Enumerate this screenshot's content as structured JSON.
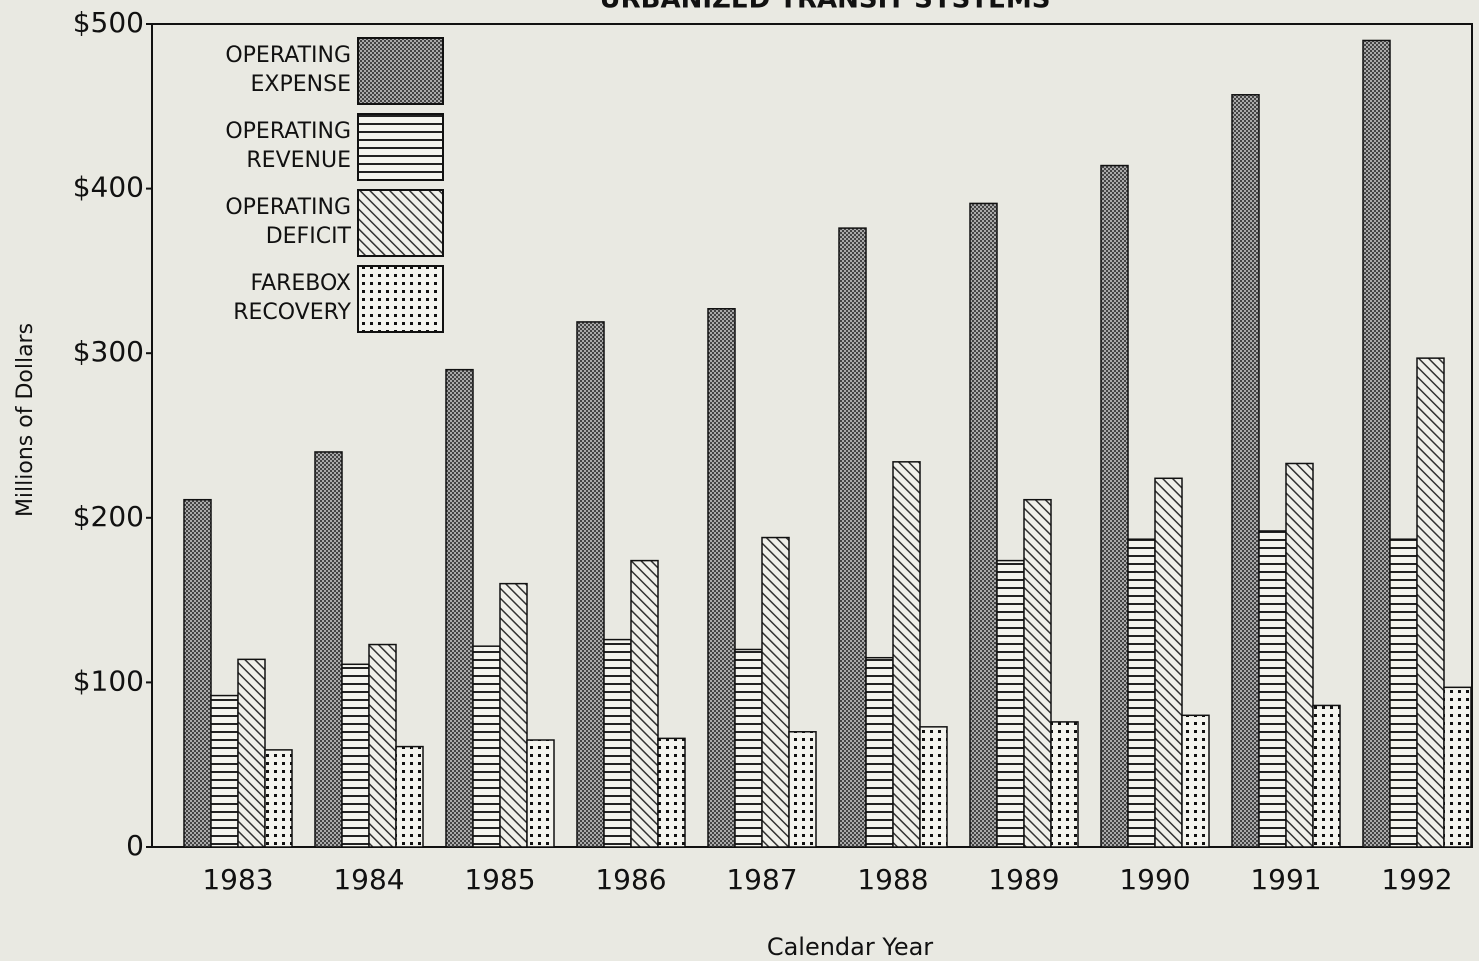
{
  "chart_data": {
    "type": "bar",
    "title": "URBANIZED TRANSIT SYSTEMS",
    "x_label": "Calendar Year",
    "y_label": "Millions of Dollars",
    "categories": [
      "1983",
      "1984",
      "1985",
      "1986",
      "1987",
      "1988",
      "1989",
      "1990",
      "1991",
      "1992"
    ],
    "series": [
      {
        "name": "OPERATING EXPENSE",
        "color": "#555555",
        "pattern": "crosshatch",
        "values": [
          211,
          240,
          290,
          319,
          327,
          376,
          391,
          414,
          457,
          490
        ]
      },
      {
        "name": "OPERATING REVENUE",
        "color": "#333333",
        "pattern": "horizontal",
        "values": [
          92,
          111,
          122,
          126,
          120,
          115,
          174,
          187,
          192,
          187
        ]
      },
      {
        "name": "OPERATING DEFICIT",
        "color": "#444444",
        "pattern": "diagonal",
        "values": [
          114,
          123,
          160,
          174,
          188,
          234,
          211,
          224,
          233,
          297
        ]
      },
      {
        "name": "FAREBOX RECOVERY",
        "color": "#222222",
        "pattern": "dots",
        "values": [
          59,
          61,
          65,
          66,
          70,
          73,
          76,
          80,
          86,
          97
        ]
      }
    ],
    "ylim": [
      0,
      500
    ],
    "yticks": [
      {
        "value": 0,
        "label": "0"
      },
      {
        "value": 100,
        "label": "$100"
      },
      {
        "value": 200,
        "label": "$200"
      },
      {
        "value": 300,
        "label": "$300"
      },
      {
        "value": 400,
        "label": "$400"
      },
      {
        "value": 500,
        "label": "$500"
      }
    ]
  }
}
